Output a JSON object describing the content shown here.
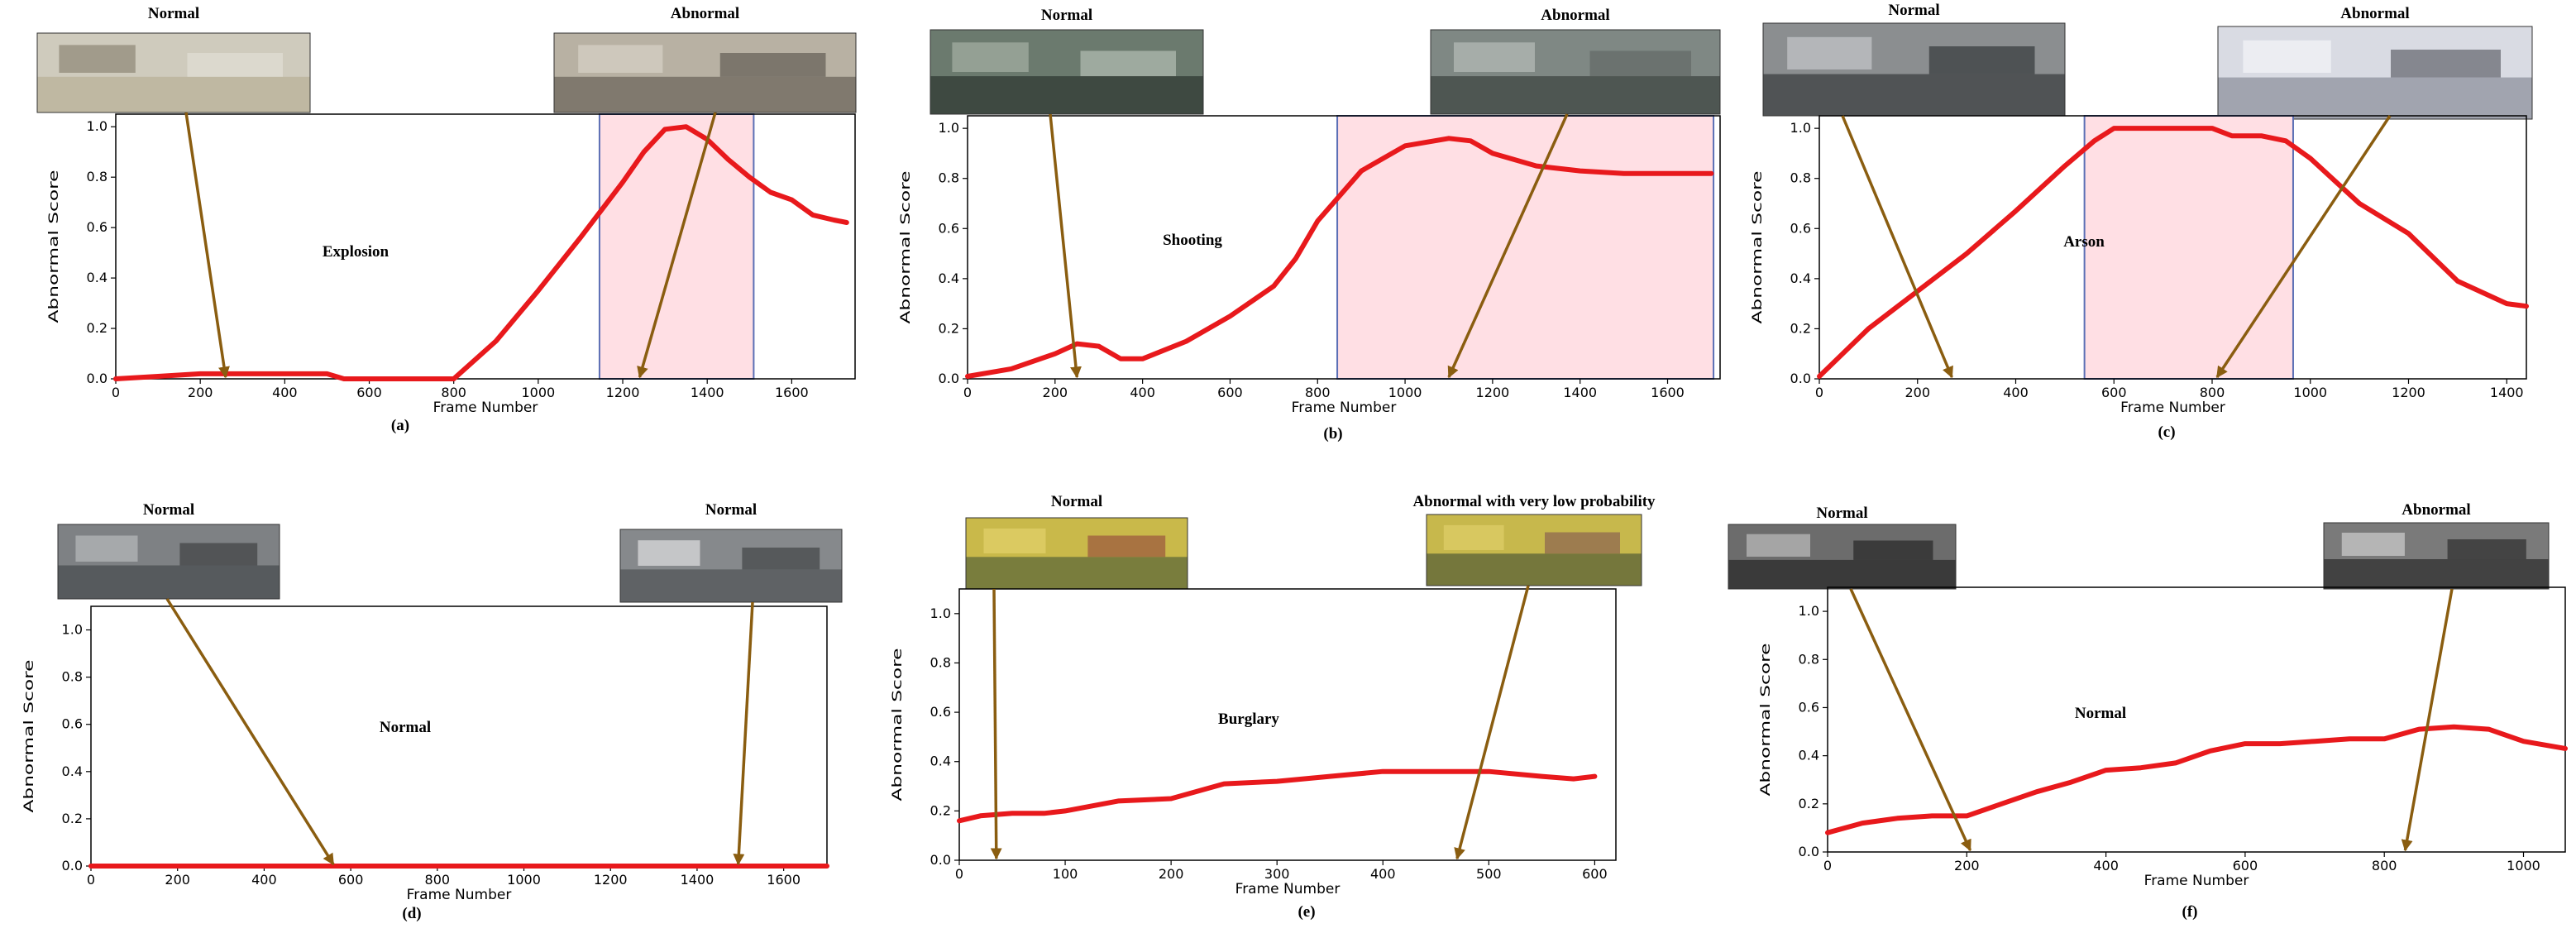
{
  "figure": {
    "panels": [
      {
        "caption": "(a)",
        "thumbs": [
          {
            "label": "Normal",
            "palette": [
              "#cfcbbd",
              "#b9b19a",
              "#8d8676",
              "#e8e6dc"
            ]
          },
          {
            "label": "Abnormal",
            "palette": [
              "#b8b1a3",
              "#6e675c",
              "#d7d2c6",
              "#4a463f"
            ]
          }
        ],
        "chart_data": {
          "type": "line",
          "title": "Explosion",
          "xlabel": "Frame Number",
          "ylabel": "Abnormal Score",
          "xlim": [
            0,
            1750
          ],
          "ylim": [
            0,
            1.05
          ],
          "xticks": [
            0,
            200,
            400,
            600,
            800,
            1000,
            1200,
            1400,
            1600
          ],
          "yticks": [
            0.0,
            0.2,
            0.4,
            0.6,
            0.8,
            1.0
          ],
          "x": [
            0,
            100,
            200,
            250,
            300,
            400,
            500,
            540,
            600,
            700,
            800,
            900,
            1000,
            1100,
            1200,
            1250,
            1300,
            1350,
            1400,
            1450,
            1500,
            1550,
            1600,
            1650,
            1700,
            1730
          ],
          "y": [
            0.0,
            0.01,
            0.02,
            0.02,
            0.02,
            0.02,
            0.02,
            0.0,
            0.0,
            0.0,
            0.0,
            0.15,
            0.35,
            0.56,
            0.78,
            0.9,
            0.99,
            1.0,
            0.95,
            0.87,
            0.8,
            0.74,
            0.71,
            0.65,
            0.63,
            0.62
          ],
          "shaded": [
            1145,
            1510
          ],
          "arrows": [
            {
              "to": 260
            },
            {
              "to": 1240
            }
          ]
        }
      },
      {
        "caption": "(b)",
        "thumbs": [
          {
            "label": "Normal",
            "palette": [
              "#6b7a6e",
              "#2f3a33",
              "#a5b1a4",
              "#c9d2c8"
            ]
          },
          {
            "label": "Abnormal",
            "palette": [
              "#7f8884",
              "#3d4542",
              "#b7bdb9",
              "#5b615e"
            ]
          }
        ],
        "chart_data": {
          "type": "line",
          "title": "Shooting",
          "xlabel": "Frame Number",
          "ylabel": "Abnormal Score",
          "xlim": [
            0,
            1720
          ],
          "ylim": [
            0,
            1.05
          ],
          "xticks": [
            0,
            200,
            400,
            600,
            800,
            1000,
            1200,
            1400,
            1600
          ],
          "yticks": [
            0.0,
            0.2,
            0.4,
            0.6,
            0.8,
            1.0
          ],
          "x": [
            0,
            100,
            200,
            250,
            300,
            350,
            400,
            500,
            600,
            700,
            750,
            800,
            900,
            1000,
            1100,
            1150,
            1200,
            1300,
            1400,
            1500,
            1600,
            1700
          ],
          "y": [
            0.01,
            0.04,
            0.1,
            0.14,
            0.13,
            0.08,
            0.08,
            0.15,
            0.25,
            0.37,
            0.48,
            0.63,
            0.83,
            0.93,
            0.96,
            0.95,
            0.9,
            0.85,
            0.83,
            0.82,
            0.82,
            0.82
          ],
          "shaded": [
            845,
            1705
          ],
          "arrows": [
            {
              "to": 250
            },
            {
              "to": 1100
            }
          ]
        }
      },
      {
        "caption": "(c)",
        "thumbs": [
          {
            "label": "Normal",
            "palette": [
              "#8b8e90",
              "#3c3f42",
              "#c6c8ca",
              "#1e2022"
            ]
          },
          {
            "label": "Abnormal",
            "palette": [
              "#d9dbe3",
              "#8e929e",
              "#f4f5f8",
              "#3f424a"
            ]
          }
        ],
        "chart_data": {
          "type": "line",
          "title": "Arson",
          "xlabel": "Frame Number",
          "ylabel": "Abnormal Score",
          "xlim": [
            0,
            1440
          ],
          "ylim": [
            0,
            1.05
          ],
          "xticks": [
            0,
            200,
            400,
            600,
            800,
            1000,
            1200,
            1400
          ],
          "yticks": [
            0.0,
            0.2,
            0.4,
            0.6,
            0.8,
            1.0
          ],
          "x": [
            0,
            100,
            200,
            300,
            400,
            500,
            560,
            600,
            700,
            800,
            840,
            900,
            950,
            1000,
            1100,
            1200,
            1300,
            1400,
            1440
          ],
          "y": [
            0.01,
            0.2,
            0.35,
            0.5,
            0.67,
            0.85,
            0.95,
            1.0,
            1.0,
            1.0,
            0.97,
            0.97,
            0.95,
            0.88,
            0.7,
            0.58,
            0.39,
            0.3,
            0.29
          ],
          "shaded": [
            540,
            965
          ],
          "arrows": [
            {
              "to": 270
            },
            {
              "to": 810
            }
          ]
        }
      },
      {
        "caption": "(d)",
        "thumbs": [
          {
            "label": "Normal",
            "palette": [
              "#7e8184",
              "#4a4d50",
              "#b8babc",
              "#2e3032"
            ]
          },
          {
            "label": "Normal",
            "palette": [
              "#86898c",
              "#525558",
              "#dfe0e1",
              "#2f3133"
            ]
          }
        ],
        "chart_data": {
          "type": "line",
          "title": "Normal",
          "xlabel": "Frame Number",
          "ylabel": "Abnormal Score",
          "xlim": [
            0,
            1700
          ],
          "ylim": [
            0,
            1.1
          ],
          "xticks": [
            0,
            200,
            400,
            600,
            800,
            1000,
            1200,
            1400,
            1600
          ],
          "yticks": [
            0.0,
            0.2,
            0.4,
            0.6,
            0.8,
            1.0
          ],
          "x": [
            0,
            200,
            400,
            600,
            800,
            1000,
            1200,
            1400,
            1600,
            1700
          ],
          "y": [
            0.0,
            0.0,
            0.0,
            0.0,
            0.0,
            0.0,
            0.0,
            0.0,
            0.0,
            0.0
          ],
          "shaded": null,
          "arrows": [
            {
              "to": 560
            },
            {
              "to": 1495
            }
          ]
        }
      },
      {
        "caption": "(e)",
        "thumbs": [
          {
            "label": "Normal",
            "palette": [
              "#c9b94a",
              "#5d6a3a",
              "#e3d26b",
              "#8c3a3a"
            ]
          },
          {
            "label": "Abnormal with very low probability",
            "palette": [
              "#c7b84c",
              "#5a6237",
              "#e0cf69",
              "#7a4a52"
            ]
          }
        ],
        "chart_data": {
          "type": "line",
          "title": "Burglary",
          "xlabel": "Frame Number",
          "ylabel": "Abnormal Score",
          "xlim": [
            0,
            620
          ],
          "ylim": [
            0,
            1.1
          ],
          "xticks": [
            0,
            100,
            200,
            300,
            400,
            500,
            600
          ],
          "yticks": [
            0.0,
            0.2,
            0.4,
            0.6,
            0.8,
            1.0
          ],
          "x": [
            0,
            20,
            50,
            80,
            100,
            150,
            200,
            250,
            300,
            350,
            400,
            450,
            500,
            550,
            580,
            600
          ],
          "y": [
            0.16,
            0.18,
            0.19,
            0.19,
            0.2,
            0.24,
            0.25,
            0.31,
            0.32,
            0.34,
            0.36,
            0.36,
            0.36,
            0.34,
            0.33,
            0.34
          ],
          "shaded": null,
          "arrows": [
            {
              "to": 35
            },
            {
              "to": 470
            }
          ]
        }
      },
      {
        "caption": "(f)",
        "thumbs": [
          {
            "label": "Normal",
            "palette": [
              "#6c6c6c",
              "#2a2a2a",
              "#bdbdbd",
              "#141414"
            ]
          },
          {
            "label": "Abnormal",
            "palette": [
              "#7a7a7a",
              "#303030",
              "#cfcfcf",
              "#181818"
            ]
          }
        ],
        "chart_data": {
          "type": "line",
          "title": "Normal",
          "xlabel": "Frame Number",
          "ylabel": "Abnormal Score",
          "xlim": [
            0,
            1060
          ],
          "ylim": [
            0,
            1.1
          ],
          "xticks": [
            0,
            200,
            400,
            600,
            800,
            1000
          ],
          "yticks": [
            0.0,
            0.2,
            0.4,
            0.6,
            0.8,
            1.0
          ],
          "x": [
            0,
            50,
            100,
            150,
            200,
            250,
            300,
            350,
            400,
            450,
            500,
            550,
            600,
            650,
            700,
            750,
            800,
            850,
            900,
            950,
            1000,
            1060
          ],
          "y": [
            0.08,
            0.12,
            0.14,
            0.15,
            0.15,
            0.2,
            0.25,
            0.29,
            0.34,
            0.35,
            0.37,
            0.42,
            0.45,
            0.45,
            0.46,
            0.47,
            0.47,
            0.51,
            0.52,
            0.51,
            0.46,
            0.43
          ],
          "shaded": null,
          "arrows": [
            {
              "to": 205
            },
            {
              "to": 830
            }
          ]
        }
      }
    ]
  }
}
